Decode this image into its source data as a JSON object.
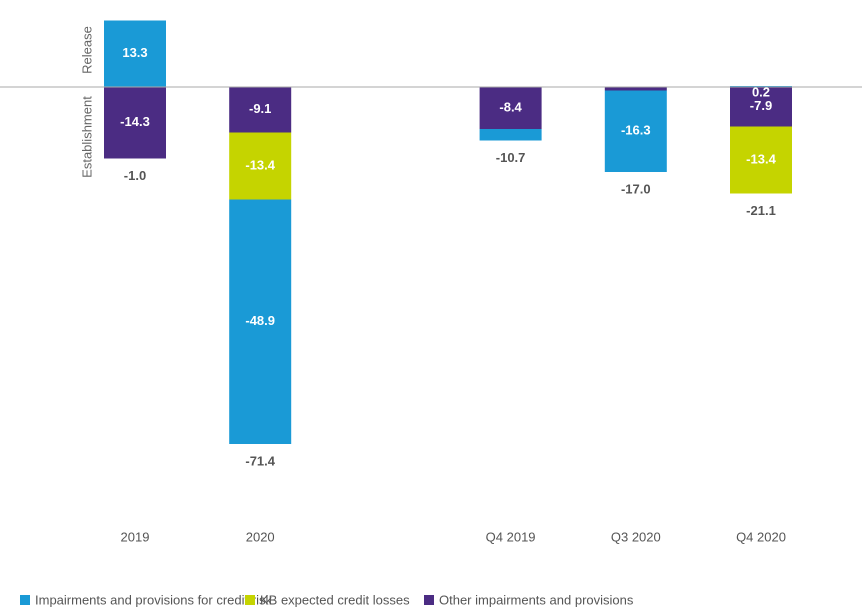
{
  "chart_data": {
    "type": "stacked_bar",
    "y_positive_label": "Release",
    "y_negative_label": "Establishment",
    "categories": [
      "2019",
      "2020",
      null,
      "Q4 2019",
      "Q3 2020",
      "Q4 2020"
    ],
    "series": [
      {
        "name": "Impairments and provisions for credit risk",
        "color": "#1a9ad6",
        "values": [
          13.3,
          -48.9,
          null,
          -2.3,
          -16.3,
          0.2
        ]
      },
      {
        "name": "KB expected credit losses",
        "color": "#c5d400",
        "values": [
          null,
          -13.4,
          null,
          null,
          null,
          -13.4
        ]
      },
      {
        "name": "Other impairments and provisions",
        "color": "#4b2c83",
        "values": [
          -14.3,
          -9.1,
          null,
          -8.4,
          -0.7,
          -7.9
        ]
      }
    ],
    "stack_order": [
      2,
      1,
      0
    ],
    "totals": {
      "values": [
        -1.0,
        -71.4,
        null,
        -10.7,
        -17.0,
        -21.1
      ],
      "value_labels": [
        "-1.0",
        "-71.4",
        null,
        "-10.7",
        "-17.0",
        "-21.1"
      ]
    },
    "ylim": [
      -75,
      15
    ],
    "legend": "bottom"
  }
}
